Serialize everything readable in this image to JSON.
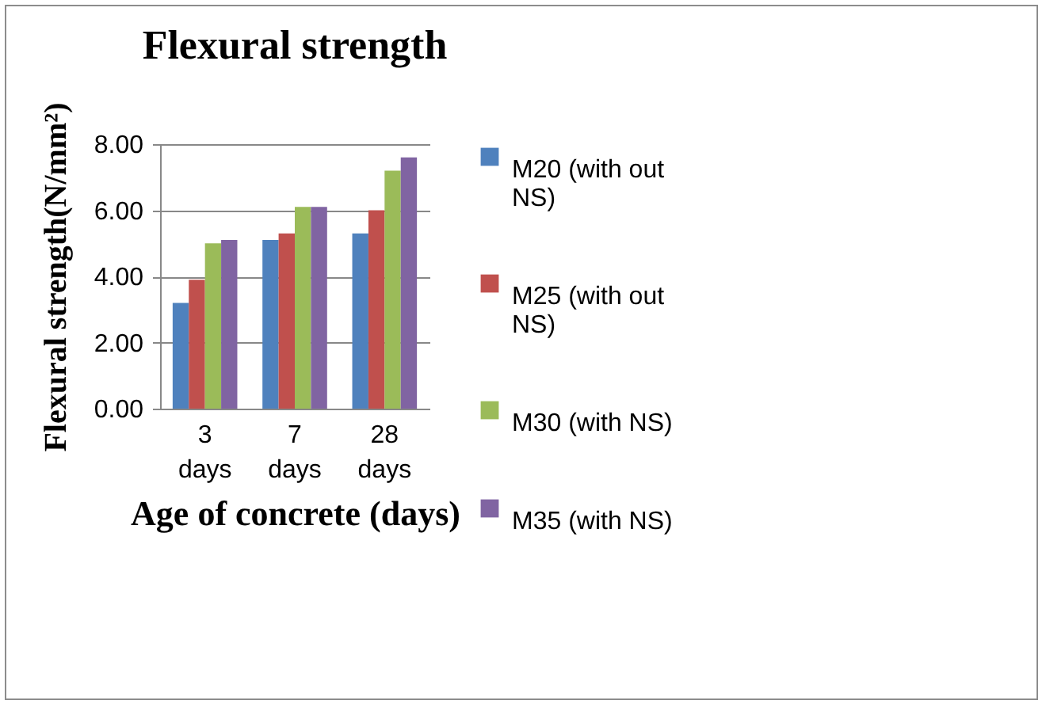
{
  "chart_data": {
    "type": "bar",
    "title": "Flexural strength",
    "xlabel": "Age of concrete (days)",
    "ylabel": "Flexural strength(N/mm²)",
    "categories": [
      "3 days",
      "7 days",
      "28 days"
    ],
    "series": [
      {
        "name": "M20 (with out NS)",
        "color": "#4f81bd",
        "values": [
          3.2,
          5.1,
          5.3
        ]
      },
      {
        "name": "M25 (with out NS)",
        "color": "#c0504d",
        "values": [
          3.9,
          5.3,
          6.0
        ]
      },
      {
        "name": "M30 (with NS)",
        "color": "#9bbb59",
        "values": [
          5.0,
          6.1,
          7.2
        ]
      },
      {
        "name": "M35 (with  NS)",
        "color": "#8064a2",
        "values": [
          5.1,
          6.1,
          7.6
        ]
      }
    ],
    "ylim": [
      0,
      8
    ],
    "yticks": [
      {
        "value": 0,
        "label": "0.00"
      },
      {
        "value": 2,
        "label": "2.00"
      },
      {
        "value": 4,
        "label": "4.00"
      },
      {
        "value": 6,
        "label": "6.00"
      },
      {
        "value": 8,
        "label": "8.00"
      }
    ],
    "grid": "y",
    "legend": "right"
  }
}
